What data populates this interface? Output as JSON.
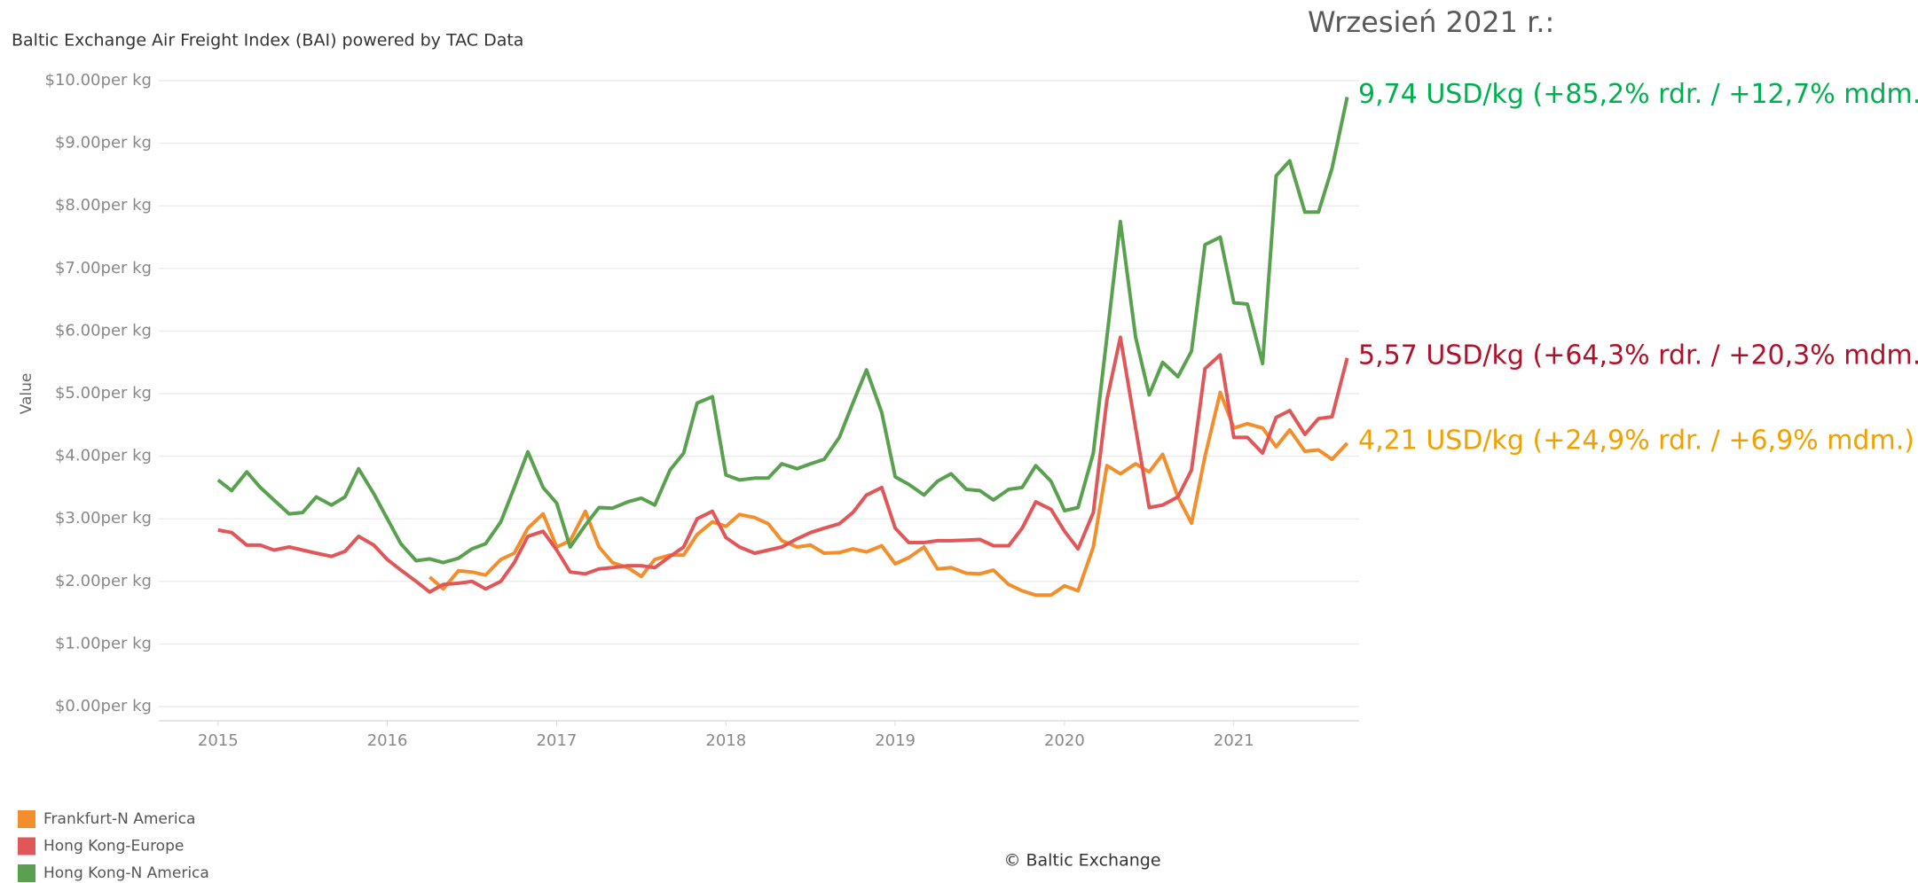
{
  "chart_data": {
    "type": "line",
    "title": "Baltic Exchange Air Freight Index (BAI) powered by TAC Data",
    "header": "Wrzesień 2021 r.:",
    "ylabel": "Value",
    "footer": "© Baltic Exchange",
    "xlim": [
      2014.65,
      2021.74
    ],
    "xticks": [
      2015,
      2016,
      2017,
      2018,
      2019,
      2020,
      2021
    ],
    "ylim": [
      0,
      10
    ],
    "yticks": [
      {
        "value": 0,
        "label": "$0.00per kg"
      },
      {
        "value": 1,
        "label": "$1.00per kg"
      },
      {
        "value": 2,
        "label": "$2.00per kg"
      },
      {
        "value": 3,
        "label": "$3.00per kg"
      },
      {
        "value": 4,
        "label": "$4.00per kg"
      },
      {
        "value": 5,
        "label": "$5.00per kg"
      },
      {
        "value": 6,
        "label": "$6.00per kg"
      },
      {
        "value": 7,
        "label": "$7.00per kg"
      },
      {
        "value": 8,
        "label": "$8.00per kg"
      },
      {
        "value": 9,
        "label": "$9.00per kg"
      },
      {
        "value": 10,
        "label": "$10.00per kg"
      }
    ],
    "grid": true,
    "legend": "bottom-left",
    "x": [
      2015,
      2015.08,
      2015.17,
      2015.25,
      2015.33,
      2015.42,
      2015.5,
      2015.58,
      2015.67,
      2015.75,
      2015.83,
      2015.92,
      2016,
      2016.08,
      2016.17,
      2016.25,
      2016.33,
      2016.42,
      2016.5,
      2016.58,
      2016.67,
      2016.75,
      2016.83,
      2016.92,
      2017,
      2017.08,
      2017.17,
      2017.25,
      2017.33,
      2017.42,
      2017.5,
      2017.58,
      2017.67,
      2017.75,
      2017.83,
      2017.92,
      2018,
      2018.08,
      2018.17,
      2018.25,
      2018.33,
      2018.42,
      2018.5,
      2018.58,
      2018.67,
      2018.75,
      2018.83,
      2018.92,
      2019,
      2019.08,
      2019.17,
      2019.25,
      2019.33,
      2019.42,
      2019.5,
      2019.58,
      2019.67,
      2019.75,
      2019.83,
      2019.92,
      2020,
      2020.08,
      2020.17,
      2020.25,
      2020.33,
      2020.42,
      2020.5,
      2020.58,
      2020.67,
      2020.75,
      2020.83,
      2020.92,
      2021,
      2021.08,
      2021.17,
      2021.25,
      2021.33,
      2021.42,
      2021.5,
      2021.58,
      2021.67
    ],
    "series": [
      {
        "name": "Frankfurt-N America",
        "color": "#f28e2b",
        "annotation_color": "#f0a000",
        "annotation": "4,21 USD/kg (+24,9% rdr. / +6,9% mdm.)",
        "values": [
          null,
          null,
          null,
          null,
          null,
          null,
          null,
          null,
          null,
          null,
          null,
          null,
          null,
          null,
          null,
          2.07,
          1.88,
          2.17,
          2.15,
          2.1,
          2.35,
          2.45,
          2.85,
          3.08,
          2.55,
          2.65,
          3.12,
          2.55,
          2.3,
          2.22,
          2.08,
          2.35,
          2.42,
          2.42,
          2.75,
          2.95,
          2.88,
          3.07,
          3.02,
          2.92,
          2.65,
          2.55,
          2.58,
          2.45,
          2.46,
          2.52,
          2.47,
          2.57,
          2.28,
          2.38,
          2.55,
          2.2,
          2.22,
          2.13,
          2.12,
          2.18,
          1.95,
          1.85,
          1.78,
          1.78,
          1.93,
          1.85,
          2.55,
          3.85,
          3.72,
          3.88,
          3.75,
          4.03,
          3.35,
          2.93,
          4.0,
          5.02,
          4.45,
          4.52,
          4.45,
          4.15,
          4.42,
          4.08,
          4.1,
          3.95,
          4.21
        ]
      },
      {
        "name": "Hong Kong-Europe",
        "color": "#e15759",
        "annotation_color": "#b0112a",
        "annotation": "5,57 USD/kg (+64,3% rdr. / +20,3% mdm.)",
        "values": [
          2.82,
          2.78,
          2.58,
          2.58,
          2.5,
          2.55,
          2.5,
          2.45,
          2.4,
          2.48,
          2.72,
          2.58,
          2.35,
          2.18,
          2.0,
          1.83,
          1.95,
          1.97,
          2.0,
          1.88,
          2.0,
          2.3,
          2.72,
          2.8,
          2.5,
          2.15,
          2.12,
          2.2,
          2.22,
          2.25,
          2.25,
          2.22,
          2.4,
          2.55,
          3.0,
          3.12,
          2.7,
          2.55,
          2.45,
          2.5,
          2.55,
          2.68,
          2.78,
          2.85,
          2.92,
          3.1,
          3.38,
          3.5,
          2.85,
          2.62,
          2.62,
          2.65,
          2.65,
          2.66,
          2.67,
          2.57,
          2.57,
          2.85,
          3.27,
          3.15,
          2.8,
          2.52,
          3.1,
          4.9,
          5.9,
          4.45,
          3.18,
          3.22,
          3.35,
          3.78,
          5.4,
          5.62,
          4.3,
          4.3,
          4.05,
          4.62,
          4.73,
          4.35,
          4.6,
          4.63,
          5.57
        ]
      },
      {
        "name": "Hong Kong-N America",
        "color": "#59a14f",
        "annotation_color": "#00b050",
        "annotation": "9,74 USD/kg (+85,2% rdr. / +12,7% mdm.)",
        "values": [
          3.62,
          3.45,
          3.75,
          3.5,
          3.3,
          3.08,
          3.1,
          3.35,
          3.22,
          3.35,
          3.8,
          3.4,
          3.0,
          2.6,
          2.33,
          2.36,
          2.3,
          2.37,
          2.52,
          2.6,
          2.95,
          3.5,
          4.07,
          3.5,
          3.25,
          2.55,
          2.9,
          3.18,
          3.17,
          3.27,
          3.33,
          3.22,
          3.78,
          4.05,
          4.85,
          4.95,
          3.7,
          3.62,
          3.65,
          3.65,
          3.88,
          3.8,
          3.88,
          3.95,
          4.3,
          4.85,
          5.38,
          4.7,
          3.67,
          3.55,
          3.38,
          3.6,
          3.72,
          3.47,
          3.45,
          3.3,
          3.47,
          3.5,
          3.85,
          3.6,
          3.13,
          3.18,
          4.05,
          5.9,
          7.75,
          5.9,
          4.98,
          5.5,
          5.27,
          5.68,
          7.38,
          7.5,
          6.45,
          6.43,
          5.48,
          8.48,
          8.72,
          7.9,
          7.9,
          8.6,
          9.74
        ]
      }
    ]
  }
}
